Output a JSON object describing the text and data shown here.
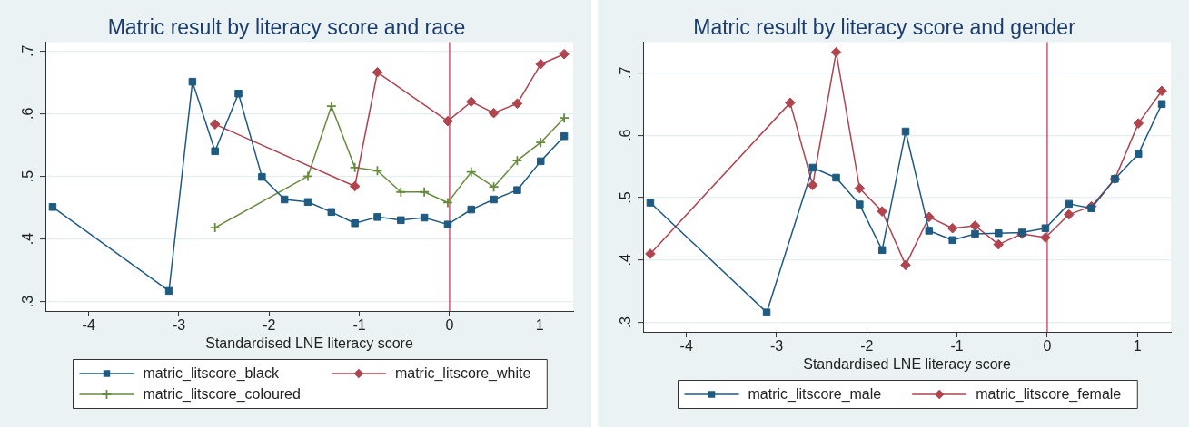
{
  "chart_data": [
    {
      "type": "line",
      "title": "Matric result by literacy score and race",
      "xlabel": "Standardised LNE literacy score",
      "xlim": [
        -4.48,
        1.37
      ],
      "xticks": [
        -4,
        -3,
        -2,
        -1,
        0,
        1
      ],
      "ylim": [
        0.285,
        0.714
      ],
      "yticks": [
        {
          "value": 0.3,
          "label": ".3"
        },
        {
          "value": 0.4,
          "label": ".4"
        },
        {
          "value": 0.5,
          "label": ".5"
        },
        {
          "value": 0.6,
          "label": ".6"
        },
        {
          "value": 0.7,
          "label": ".7"
        }
      ],
      "grid": "y",
      "legend": "bottom",
      "ref_lines": [
        {
          "axis": "x",
          "value": 0,
          "color": "#c83c5c"
        }
      ],
      "series": [
        {
          "name": "matric_litscore_black",
          "color": "#1f5a80",
          "marker": "square",
          "x": [
            -4.4,
            -3.11,
            -2.85,
            -2.6,
            -2.34,
            -2.08,
            -1.83,
            -1.57,
            -1.31,
            -1.05,
            -0.8,
            -0.54,
            -0.28,
            -0.02,
            0.24,
            0.49,
            0.75,
            1.01,
            1.27
          ],
          "values": [
            0.451,
            0.317,
            0.651,
            0.54,
            0.632,
            0.499,
            0.463,
            0.459,
            0.443,
            0.425,
            0.435,
            0.43,
            0.434,
            0.423,
            0.447,
            0.463,
            0.478,
            0.524,
            0.564
          ]
        },
        {
          "name": "matric_litscore_white",
          "color": "#b0444f",
          "marker": "diamond",
          "x": [
            -2.6,
            -1.05,
            -0.8,
            -0.02,
            0.24,
            0.49,
            0.75,
            1.01,
            1.27
          ],
          "values": [
            0.583,
            0.484,
            0.666,
            0.588,
            0.619,
            0.601,
            0.616,
            0.679,
            0.695
          ]
        },
        {
          "name": "matric_litscore_coloured",
          "color": "#668b3c",
          "marker": "cross",
          "x": [
            -2.6,
            -1.57,
            -1.31,
            -1.05,
            -0.8,
            -0.54,
            -0.28,
            -0.02,
            0.24,
            0.49,
            0.75,
            1.01,
            1.27
          ],
          "values": [
            0.418,
            0.5,
            0.612,
            0.514,
            0.509,
            0.475,
            0.475,
            0.458,
            0.507,
            0.483,
            0.525,
            0.554,
            0.593
          ]
        }
      ]
    },
    {
      "type": "line",
      "title": "Matric result by literacy score and gender",
      "xlabel": "Standardised LNE literacy score",
      "xlim": [
        -4.48,
        1.37
      ],
      "xticks": [
        -4,
        -3,
        -2,
        -1,
        0,
        1
      ],
      "ylim": [
        0.285,
        0.749
      ],
      "yticks": [
        {
          "value": 0.3,
          "label": ".3"
        },
        {
          "value": 0.4,
          "label": ".4"
        },
        {
          "value": 0.5,
          "label": ".5"
        },
        {
          "value": 0.6,
          "label": ".6"
        },
        {
          "value": 0.7,
          "label": ".7"
        }
      ],
      "grid": "y",
      "legend": "bottom",
      "ref_lines": [
        {
          "axis": "x",
          "value": 0,
          "color": "#c83c5c"
        }
      ],
      "series": [
        {
          "name": "matric_litscore_male",
          "color": "#1f5a80",
          "marker": "square",
          "x": [
            -4.4,
            -3.11,
            -2.6,
            -2.34,
            -2.08,
            -1.83,
            -1.57,
            -1.31,
            -1.05,
            -0.8,
            -0.54,
            -0.28,
            -0.02,
            0.24,
            0.49,
            0.75,
            1.01,
            1.27
          ],
          "values": [
            0.492,
            0.316,
            0.548,
            0.532,
            0.489,
            0.416,
            0.606,
            0.447,
            0.432,
            0.442,
            0.443,
            0.444,
            0.451,
            0.49,
            0.483,
            0.53,
            0.57,
            0.65
          ]
        },
        {
          "name": "matric_litscore_female",
          "color": "#b0444f",
          "marker": "diamond",
          "x": [
            -4.4,
            -2.85,
            -2.6,
            -2.34,
            -2.08,
            -1.83,
            -1.57,
            -1.31,
            -1.05,
            -0.8,
            -0.54,
            -0.28,
            -0.02,
            0.24,
            0.49,
            0.75,
            1.01,
            1.27
          ],
          "values": [
            0.41,
            0.652,
            0.52,
            0.733,
            0.515,
            0.478,
            0.392,
            0.469,
            0.451,
            0.455,
            0.425,
            0.442,
            0.436,
            0.473,
            0.486,
            0.53,
            0.619,
            0.671
          ]
        }
      ]
    }
  ]
}
